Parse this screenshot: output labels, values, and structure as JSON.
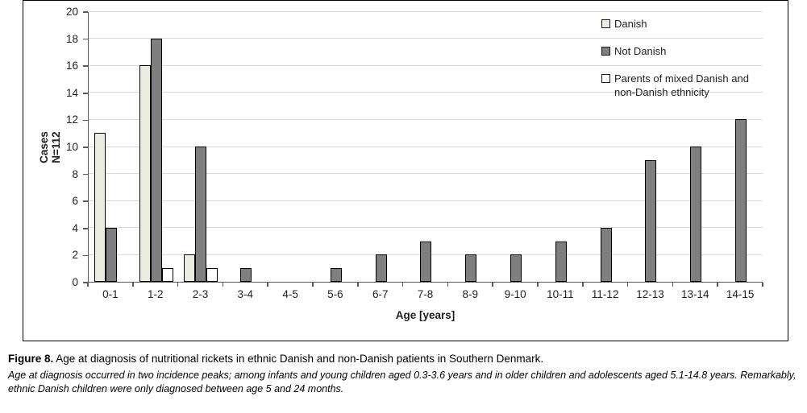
{
  "figure": {
    "background": "#FFFFFF",
    "frame_border_color": "#000000",
    "axis_color": "#595959",
    "gridline_color": "#D9D9D9",
    "bar_border_color": "#000000"
  },
  "chart_data": {
    "type": "bar",
    "title": "",
    "categories": [
      "0-1",
      "1-2",
      "2-3",
      "3-4",
      "4-5",
      "5-6",
      "6-7",
      "7-8",
      "8-9",
      "9-10",
      "10-11",
      "11-12",
      "12-13",
      "13-14",
      "14-15"
    ],
    "series": [
      {
        "name": "Danish",
        "color": "#ECEDE0",
        "values": [
          11,
          16,
          2,
          0,
          0,
          0,
          0,
          0,
          0,
          0,
          0,
          0,
          0,
          0,
          0
        ]
      },
      {
        "name": "Not Danish",
        "color": "#7F7F7F",
        "values": [
          4,
          18,
          10,
          1,
          0,
          1,
          2,
          3,
          2,
          2,
          3,
          4,
          9,
          10,
          12
        ]
      },
      {
        "name": "Parents of mixed Danish and non-Danish ethnicity",
        "color": "#FFFFFF",
        "values": [
          0,
          1,
          1,
          0,
          0,
          0,
          0,
          0,
          0,
          0,
          0,
          0,
          0,
          0,
          0
        ]
      }
    ],
    "xlabel": "Age [years]",
    "ylabel": "Cases N=112",
    "ylabel_lines": [
      "Cases",
      "N=112"
    ],
    "ylim": [
      0,
      20
    ],
    "yticks": [
      0,
      2,
      4,
      6,
      8,
      10,
      12,
      14,
      16,
      18,
      20
    ],
    "grid": true,
    "legend_position": "top-right-inside",
    "total_n": 112
  },
  "legend": {
    "items": [
      {
        "label": "Danish",
        "swatch": "#ECEDE0"
      },
      {
        "label": "Not Danish",
        "swatch": "#7F7F7F"
      },
      {
        "label": "Parents of mixed Danish and non-Danish ethnicity",
        "swatch": "#FFFFFF"
      }
    ]
  },
  "caption": {
    "label": "Figure 8.",
    "title": " Age at diagnosis of nutritional rickets in ethnic Danish and non-Danish patients in Southern Denmark.",
    "note": "Age at diagnosis occurred in two incidence peaks; among infants and young children aged 0.3-3.6 years and in older children and adolescents aged 5.1-14.8 years. Remarkably, ethnic Danish children were only diagnosed between age 5 and 24 months."
  }
}
